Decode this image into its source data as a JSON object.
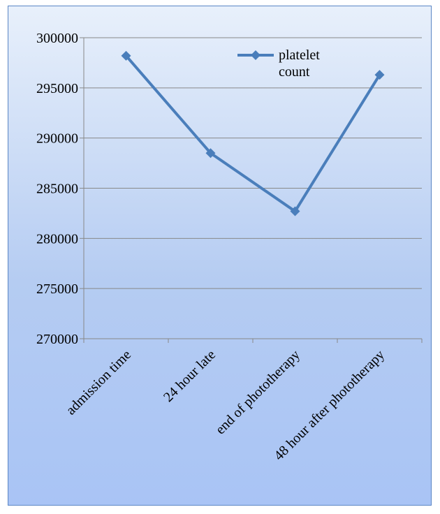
{
  "chart_data": {
    "type": "line",
    "categories": [
      "admission time",
      "24 hour late",
      "end of phototherapy",
      "48 hour after phototherapy"
    ],
    "series": [
      {
        "name": "platelet count",
        "values": [
          298200,
          288500,
          282700,
          296300
        ]
      }
    ],
    "ylim": [
      270000,
      300000
    ],
    "yticks": [
      300000,
      295000,
      290000,
      285000,
      280000,
      275000,
      270000
    ],
    "grid": true,
    "legend": {
      "position": "top-right",
      "label_lines": [
        "platelet",
        "count"
      ]
    },
    "colors": {
      "series": "#4a7ebb",
      "grid": "#888888",
      "frame": "#5b86c5"
    }
  }
}
